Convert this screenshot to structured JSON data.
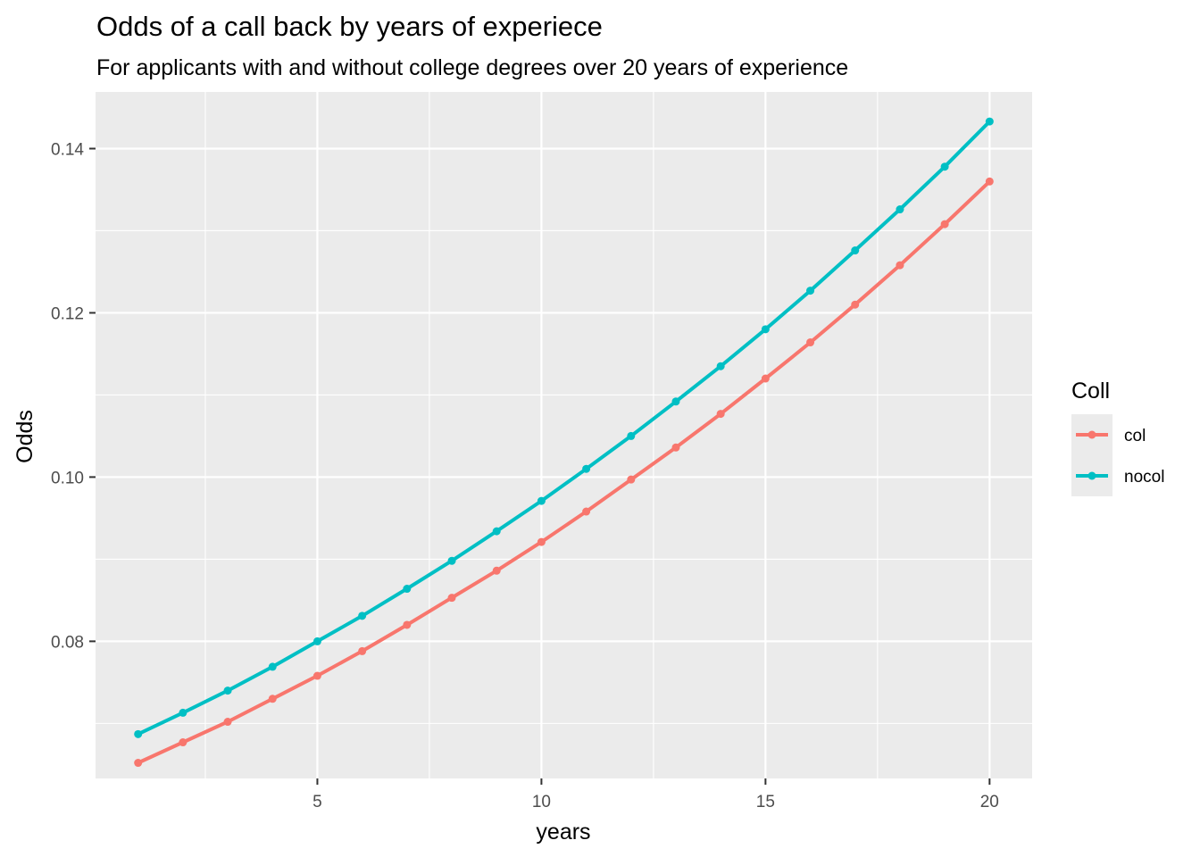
{
  "chart_data": {
    "type": "line",
    "title": "Odds of a call back by years of experiece",
    "subtitle": "For applicants with and without college degrees over 20 years of experience",
    "xlabel": "years",
    "ylabel": "Odds",
    "x": [
      1,
      2,
      3,
      4,
      5,
      6,
      7,
      8,
      9,
      10,
      11,
      12,
      13,
      14,
      15,
      16,
      17,
      18,
      19,
      20
    ],
    "xlim": [
      0.05,
      20.95
    ],
    "ylim": [
      0.0633,
      0.1469
    ],
    "x_ticks": [
      5,
      10,
      15,
      20
    ],
    "x_tick_labels": [
      "5",
      "10",
      "15",
      "20"
    ],
    "y_ticks": [
      0.08,
      0.1,
      0.12,
      0.14
    ],
    "y_tick_labels": [
      "0.08",
      "0.10",
      "0.12",
      "0.14"
    ],
    "grid": true,
    "legend_position": "right",
    "legend_title": "Coll",
    "series": [
      {
        "name": "col",
        "color": "#F8766D",
        "values": [
          0.0652,
          0.0677,
          0.0702,
          0.073,
          0.0758,
          0.0788,
          0.082,
          0.0853,
          0.0886,
          0.0921,
          0.0958,
          0.0997,
          0.1036,
          0.1077,
          0.112,
          0.1164,
          0.121,
          0.1258,
          0.1308,
          0.136
        ]
      },
      {
        "name": "nocol",
        "color": "#00BFC4",
        "values": [
          0.0687,
          0.0713,
          0.074,
          0.0769,
          0.08,
          0.0831,
          0.0864,
          0.0898,
          0.0934,
          0.0971,
          0.101,
          0.105,
          0.1092,
          0.1135,
          0.118,
          0.1227,
          0.1276,
          0.1326,
          0.1378,
          0.1433
        ]
      }
    ]
  }
}
